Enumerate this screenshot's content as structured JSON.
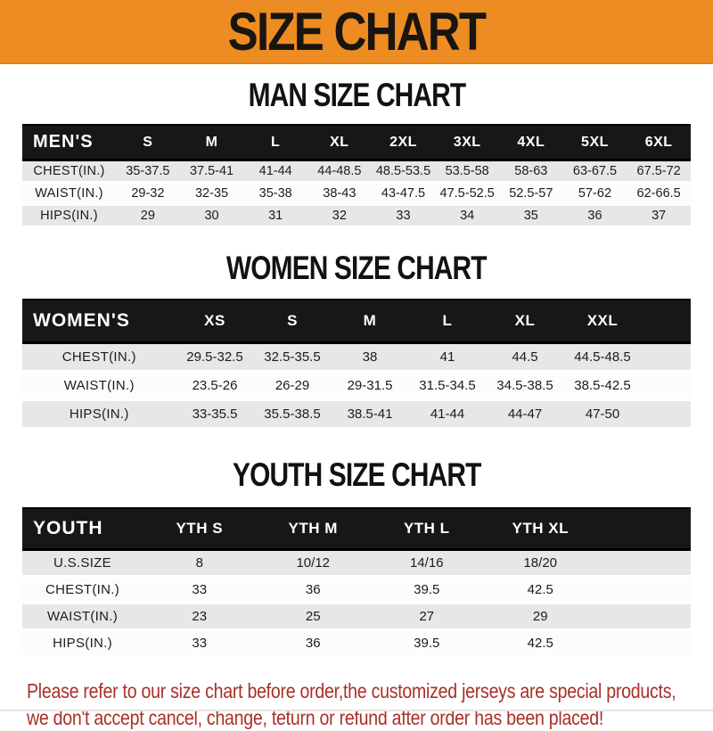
{
  "banner": {
    "title": "SIZE CHART"
  },
  "colors": {
    "banner_orange": "#ed8c22",
    "header_black": "#171717",
    "stripe_gray": "#e7e7e7",
    "notice_red": "#a93029"
  },
  "charts": [
    {
      "heading": "MAN SIZE CHART",
      "header_label": "MEN'S",
      "columns": [
        "S",
        "M",
        "L",
        "XL",
        "2XL",
        "3XL",
        "4XL",
        "5XL",
        "6XL"
      ],
      "rows": [
        {
          "label": "CHEST(IN.)",
          "values": [
            "35-37.5",
            "37.5-41",
            "41-44",
            "44-48.5",
            "48.5-53.5",
            "53.5-58",
            "58-63",
            "63-67.5",
            "67.5-72"
          ]
        },
        {
          "label": "WAIST(IN.)",
          "values": [
            "29-32",
            "32-35",
            "35-38",
            "38-43",
            "43-47.5",
            "47.5-52.5",
            "52.5-57",
            "57-62",
            "62-66.5"
          ]
        },
        {
          "label": "HIPS(IN.)",
          "values": [
            "29",
            "30",
            "31",
            "32",
            "33",
            "34",
            "35",
            "36",
            "37"
          ]
        }
      ]
    },
    {
      "heading": "WOMEN SIZE CHART",
      "header_label": "WOMEN'S",
      "columns": [
        "XS",
        "S",
        "M",
        "L",
        "XL",
        "XXL"
      ],
      "rows": [
        {
          "label": "CHEST(IN.)",
          "values": [
            "29.5-32.5",
            "32.5-35.5",
            "38",
            "41",
            "44.5",
            "44.5-48.5"
          ]
        },
        {
          "label": "WAIST(IN.)",
          "values": [
            "23.5-26",
            "26-29",
            "29-31.5",
            "31.5-34.5",
            "34.5-38.5",
            "38.5-42.5"
          ]
        },
        {
          "label": "HIPS(IN.)",
          "values": [
            "33-35.5",
            "35.5-38.5",
            "38.5-41",
            "41-44",
            "44-47",
            "47-50"
          ]
        }
      ]
    },
    {
      "heading": "YOUTH SIZE CHART",
      "header_label": "YOUTH",
      "columns": [
        "YTH S",
        "YTH M",
        "YTH L",
        "YTH XL"
      ],
      "rows": [
        {
          "label": "U.S.SIZE",
          "values": [
            "8",
            "10/12",
            "14/16",
            "18/20"
          ]
        },
        {
          "label": "CHEST(IN.)",
          "values": [
            "33",
            "36",
            "39.5",
            "42.5"
          ]
        },
        {
          "label": "WAIST(IN.)",
          "values": [
            "23",
            "25",
            "27",
            "29"
          ]
        },
        {
          "label": "HIPS(IN.)",
          "values": [
            "33",
            "36",
            "39.5",
            "42.5"
          ]
        }
      ]
    }
  ],
  "notice": {
    "line1": "Please refer to our size chart before order,the customized jerseys are special products,",
    "line2": "we don't accept cancel, change, teturn or refund after order has been placed!"
  }
}
